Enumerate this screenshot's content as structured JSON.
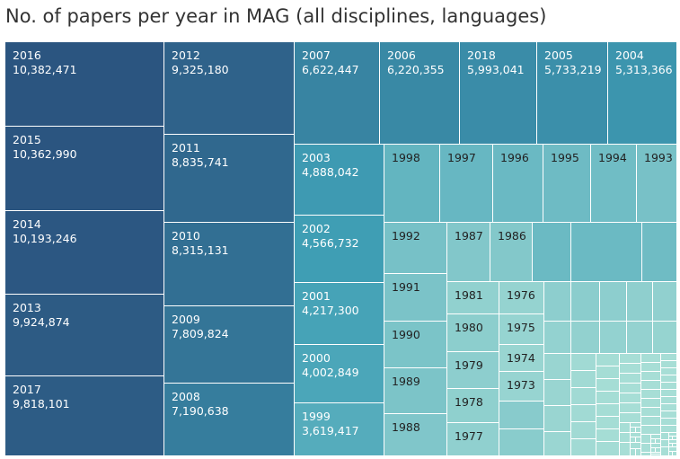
{
  "title": "No. of papers per year in MAG (all disciplines, languages)",
  "chart_data": {
    "type": "treemap",
    "title": "No. of papers per year in MAG (all disciplines, languages)",
    "items": [
      {
        "year": "2016",
        "value": 10382471,
        "label": "10,382,471"
      },
      {
        "year": "2015",
        "value": 10362990,
        "label": "10,362,990"
      },
      {
        "year": "2014",
        "value": 10193246,
        "label": "10,193,246"
      },
      {
        "year": "2013",
        "value": 9924874,
        "label": "9,924,874"
      },
      {
        "year": "2017",
        "value": 9818101,
        "label": "9,818,101"
      },
      {
        "year": "2012",
        "value": 9325180,
        "label": "9,325,180"
      },
      {
        "year": "2011",
        "value": 8835741,
        "label": "8,835,741"
      },
      {
        "year": "2010",
        "value": 8315131,
        "label": "8,315,131"
      },
      {
        "year": "2009",
        "value": 7809824,
        "label": "7,809,824"
      },
      {
        "year": "2008",
        "value": 7190638,
        "label": "7,190,638"
      },
      {
        "year": "2007",
        "value": 6622447,
        "label": "6,622,447"
      },
      {
        "year": "2006",
        "value": 6220355,
        "label": "6,220,355"
      },
      {
        "year": "2018",
        "value": 5993041,
        "label": "5,993,041"
      },
      {
        "year": "2005",
        "value": 5733219,
        "label": "5,733,219"
      },
      {
        "year": "2004",
        "value": 5313366,
        "label": "5,313,366"
      },
      {
        "year": "2003",
        "value": 4888042,
        "label": "4,888,042"
      },
      {
        "year": "2002",
        "value": 4566732,
        "label": "4,566,732"
      },
      {
        "year": "2001",
        "value": 4217300,
        "label": "4,217,300"
      },
      {
        "year": "2000",
        "value": 4002849,
        "label": "4,002,849"
      },
      {
        "year": "1999",
        "value": 3619417,
        "label": "3,619,417"
      },
      {
        "year": "1998"
      },
      {
        "year": "1997"
      },
      {
        "year": "1996"
      },
      {
        "year": "1995"
      },
      {
        "year": "1994"
      },
      {
        "year": "1993"
      },
      {
        "year": "1992"
      },
      {
        "year": "1987"
      },
      {
        "year": "1986"
      },
      {
        "year": "1991"
      },
      {
        "year": "1990"
      },
      {
        "year": "1989"
      },
      {
        "year": "1988"
      },
      {
        "year": "1981"
      },
      {
        "year": "1980"
      },
      {
        "year": "1979"
      },
      {
        "year": "1978"
      },
      {
        "year": "1977"
      },
      {
        "year": "1976"
      },
      {
        "year": "1975"
      },
      {
        "year": "1974"
      },
      {
        "year": "1973"
      }
    ],
    "colors": {
      "high": "#2b5580",
      "mid": "#3f9fb5",
      "low": "#aee2d8"
    }
  }
}
